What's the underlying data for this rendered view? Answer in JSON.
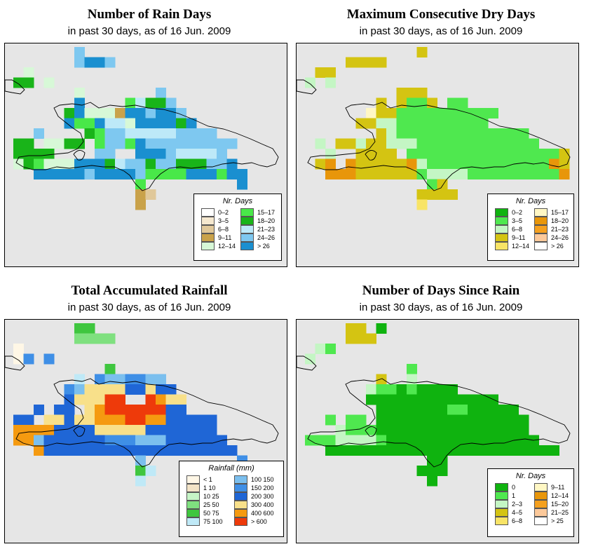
{
  "date_note": "16 Jun. 2009",
  "panels": [
    {
      "id": "rain-days",
      "title": "Number of Rain Days",
      "subtitle": "in past 30 days, as of  16 Jun. 2009",
      "legend_title": "Nr. Days",
      "legend": [
        {
          "label": "0–2",
          "color": "#ffffff"
        },
        {
          "label": "3–5",
          "color": "#f5e8cf"
        },
        {
          "label": "6–8",
          "color": "#e0c89a"
        },
        {
          "label": "9–11",
          "color": "#c9a24a"
        },
        {
          "label": "12–14",
          "color": "#d7f8d7"
        },
        {
          "label": "15–17",
          "color": "#49e849"
        },
        {
          "label": "18–20",
          "color": "#19b419"
        },
        {
          "label": "21–23",
          "color": "#bde9f8"
        },
        {
          "label": "24–26",
          "color": "#7ec8f0"
        },
        {
          "label": "> 26",
          "color": "#1a8fd0"
        }
      ],
      "grid_rows": [
        "......8.....................",
        "......8998..................",
        ".4..........................",
        "66.4........................",
        "......4.......8.............",
        "......9....57668............",
        ".....694443998998...........",
        ".....9559774999969..........",
        "..8....6588777778888........",
        "66.4466.58859888888888......",
        "6666....88..999877778.......",
        "4654449996788688666889......",
        "..999998999985555999599.....",
        "............5.........9.....",
        "............32..............",
        "............3..............."
      ]
    },
    {
      "id": "dry-days",
      "title": "Maximum Consecutive Dry Days",
      "subtitle": "in past 30 days, as of  16 Jun. 2009",
      "legend_title": "Nr. Days",
      "legend": [
        {
          "label": "0–2",
          "color": "#0fb30f"
        },
        {
          "label": "3–5",
          "color": "#4fe84f"
        },
        {
          "label": "6–8",
          "color": "#c4f6c4"
        },
        {
          "label": "9–11",
          "color": "#d4c412"
        },
        {
          "label": "12–14",
          "color": "#f8e466"
        },
        {
          "label": "15–17",
          "color": "#fff7c4"
        },
        {
          "label": "18–20",
          "color": "#e8960a"
        },
        {
          "label": "21–23",
          "color": "#f5a01e"
        },
        {
          "label": "24–26",
          "color": "#fcc99a"
        },
        {
          "label": "> 26",
          "color": "#ffffff"
        }
      ],
      "grid_rows": [
        "...........3.................",
        "....3333....................",
        ".33.........................",
        "2.2.........................",
        ".........333................",
        ".......3.3113.11............",
        "......5331111111111.........",
        ".....3322111111111...........",
        ".......321111111111111.......",
        ".2.33233222111111111111.......",
        "..2..3333.1111111111111113...",
        ".36.6333336211111111111163....",
        "..666333333122221111111116....",
        "............13................",
        "...........3333...............",
        "...........4.................."
      ]
    },
    {
      "id": "rainfall",
      "title": "Total Accumulated Rainfall",
      "subtitle": "in past 30 days, as of  16 Jun. 2009",
      "legend_title": "Rainfall (mm)",
      "legend": [
        {
          "label": "< 1",
          "color": "#fff7e6"
        },
        {
          "label": "1 10",
          "color": "#f3e3c6"
        },
        {
          "label": "10 25",
          "color": "#c6f5c6"
        },
        {
          "label": "25 50",
          "color": "#7fe07f"
        },
        {
          "label": "50 75",
          "color": "#3fc63f"
        },
        {
          "label": "75 100",
          "color": "#bfe9f7"
        },
        {
          "label": "100 150",
          "color": "#7bbfee"
        },
        {
          "label": "150 200",
          "color": "#3f8fe6"
        },
        {
          "label": "200 300",
          "color": "#1f66d6"
        },
        {
          "label": "300 400",
          "color": "#f8e08a"
        },
        {
          "label": "400 600",
          "color": "#f59a10"
        },
        {
          "label": "> 600",
          "color": "#ee3a0a"
        }
      ],
      "grid_rows": [
        "......44....................",
        "......3333..................",
        "0...........................",
        "07.7........................",
        ".........4..................",
        "......5.7667766.............",
        ".....76999988988............",
        ".....8999bbccba99...........",
        "..8.88.9abbbbbb88...........",
        "88.99899aaabbaa88888........",
        "aaaa8888999998888888........",
        "aa6888888777666888888.......",
        "..a8888888888888888888......",
        "............6.........7.....",
        "............45..............",
        "............5..............."
      ]
    },
    {
      "id": "since-rain",
      "title": "Number of Days Since Rain",
      "subtitle": "in past 30 days, as of  16 Jun. 2009",
      "legend_title": "Nr. Days",
      "legend": [
        {
          "label": "0",
          "color": "#0fb30f"
        },
        {
          "label": "1",
          "color": "#4fe84f"
        },
        {
          "label": "2–3",
          "color": "#c4f6c4"
        },
        {
          "label": "4–5",
          "color": "#d4c412"
        },
        {
          "label": "6–8",
          "color": "#f8e466"
        },
        {
          "label": "9–11",
          "color": "#fff7c4"
        },
        {
          "label": "12–14",
          "color": "#e8960a"
        },
        {
          "label": "15–20",
          "color": "#f5a01e"
        },
        {
          "label": "21–25",
          "color": "#fcc99a"
        },
        {
          "label": "> 25",
          "color": "#ffffff"
        }
      ],
      "grid_rows": [
        "....33.0.....................",
        "....333.....................",
        ".21.........................",
        "2...........................",
        "..........1.................",
        ".......3..2.................",
        "......211010000..............",
        "......0000000000000..........",
        ".......00000001100000........",
        "..1.11.000000000000000.......",
        "...2111000000000000000.......",
        "11122221000000000000000.......",
        "..00000000000000000000000.....",
        "............00................",
        "...........000................",
        "............0................."
      ]
    }
  ]
}
